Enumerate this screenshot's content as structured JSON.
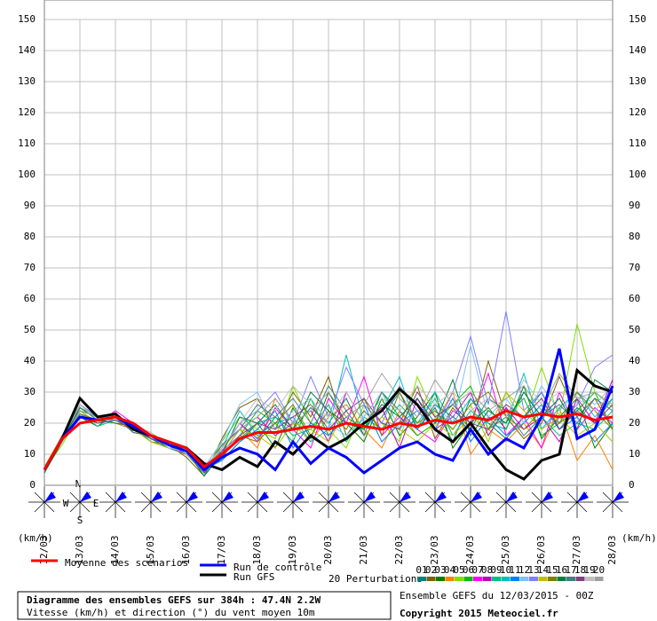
{
  "chart_data": {
    "type": "line",
    "categories": [
      "12/03",
      null,
      "13/03",
      null,
      "14/03",
      null,
      "15/03",
      null,
      "16/03",
      null,
      "17/03",
      null,
      "18/03",
      null,
      "19/03",
      null,
      "20/03",
      null,
      "21/03",
      null,
      "22/03",
      null,
      "23/03",
      null,
      "24/03",
      null,
      "25/03",
      null,
      "26/03",
      null,
      "27/03",
      null,
      "28/03"
    ],
    "ylim": [
      0,
      150
    ],
    "yticks": [
      0,
      10,
      20,
      30,
      40,
      50,
      60,
      70,
      80,
      90,
      100,
      110,
      120,
      130,
      140,
      150
    ],
    "grid": true,
    "y_unit": "(km/h)",
    "compass": [
      "N",
      "W",
      "E",
      "S"
    ],
    "perturbations_label": "20 Perturbations",
    "title": "Diagramme des ensembles GEFS sur 384h : 47.4N 2.2W",
    "subtitle": "Vitesse (km/h) et direction (°) du vent moyen 10m",
    "run_info": "Ensemble GEFS du 12/03/2015 - 00Z",
    "copyright": "Copyright 2015 Meteociel.fr",
    "series": [
      {
        "name": "01",
        "color": "#008080",
        "values": [
          5,
          14,
          24,
          20,
          22,
          18,
          15,
          12,
          10,
          4,
          12,
          20,
          15,
          22,
          18,
          25,
          20,
          28,
          16,
          22,
          30,
          18,
          25,
          14,
          28,
          20,
          15,
          22,
          30,
          18,
          25,
          20,
          28
        ]
      },
      {
        "name": "02",
        "color": "#806000",
        "values": [
          4,
          16,
          26,
          22,
          21,
          19,
          14,
          13,
          9,
          3,
          15,
          25,
          28,
          18,
          30,
          22,
          35,
          16,
          24,
          18,
          20,
          32,
          15,
          25,
          18,
          40,
          22,
          15,
          20,
          35,
          22,
          28,
          18
        ]
      },
      {
        "name": "03",
        "color": "#008000",
        "values": [
          5,
          15,
          22,
          19,
          23,
          17,
          16,
          12,
          11,
          6,
          8,
          14,
          20,
          12,
          25,
          15,
          30,
          20,
          14,
          28,
          16,
          22,
          30,
          12,
          20,
          25,
          18,
          32,
          15,
          22,
          28,
          12,
          20
        ]
      },
      {
        "name": "04",
        "color": "#ff8000",
        "values": [
          6,
          15,
          25,
          21,
          20,
          18,
          15,
          14,
          10,
          5,
          10,
          18,
          12,
          28,
          20,
          14,
          22,
          26,
          18,
          12,
          24,
          16,
          20,
          30,
          10,
          18,
          14,
          20,
          12,
          25,
          8,
          16,
          5
        ]
      },
      {
        "name": "05",
        "color": "#80e000",
        "values": [
          5,
          13,
          23,
          20,
          22,
          19,
          17,
          13,
          12,
          4,
          14,
          22,
          18,
          15,
          32,
          20,
          18,
          12,
          26,
          20,
          14,
          35,
          22,
          18,
          26,
          14,
          30,
          20,
          38,
          22,
          52,
          30,
          25
        ]
      },
      {
        "name": "06",
        "color": "#00c000",
        "values": [
          4,
          15,
          24,
          22,
          21,
          18,
          16,
          12,
          11,
          5,
          9,
          16,
          24,
          20,
          14,
          28,
          16,
          22,
          18,
          30,
          22,
          16,
          20,
          26,
          32,
          18,
          22,
          28,
          16,
          20,
          24,
          30,
          18
        ]
      },
      {
        "name": "07",
        "color": "#ff00ff",
        "values": [
          5,
          16,
          22,
          20,
          24,
          20,
          15,
          13,
          10,
          6,
          11,
          20,
          14,
          25,
          18,
          12,
          28,
          20,
          35,
          16,
          22,
          18,
          14,
          24,
          20,
          36,
          16,
          22,
          12,
          30,
          18,
          25,
          20
        ]
      },
      {
        "name": "08",
        "color": "#c000c0",
        "values": [
          5,
          14,
          26,
          21,
          22,
          17,
          16,
          14,
          11,
          4,
          13,
          18,
          22,
          16,
          20,
          24,
          14,
          30,
          20,
          25,
          12,
          28,
          18,
          22,
          30,
          16,
          25,
          18,
          22,
          14,
          28,
          20,
          34
        ]
      },
      {
        "name": "09",
        "color": "#00c080",
        "values": [
          6,
          15,
          23,
          19,
          21,
          19,
          14,
          12,
          10,
          5,
          10,
          15,
          20,
          22,
          16,
          18,
          26,
          14,
          22,
          18,
          26,
          20,
          28,
          16,
          24,
          20,
          18,
          30,
          22,
          16,
          20,
          18,
          24
        ]
      },
      {
        "name": "10",
        "color": "#00c0c0",
        "values": [
          5,
          15,
          25,
          22,
          23,
          18,
          15,
          13,
          11,
          3,
          12,
          24,
          16,
          20,
          22,
          14,
          18,
          42,
          20,
          24,
          35,
          18,
          30,
          20,
          28,
          22,
          20,
          36,
          18,
          25,
          30,
          22,
          28
        ]
      },
      {
        "name": "11",
        "color": "#0080ff",
        "values": [
          4,
          16,
          24,
          20,
          22,
          20,
          16,
          12,
          12,
          5,
          8,
          14,
          18,
          24,
          12,
          20,
          16,
          22,
          26,
          14,
          20,
          24,
          18,
          28,
          14,
          22,
          16,
          20,
          26,
          18,
          22,
          14,
          20
        ]
      },
      {
        "name": "12",
        "color": "#80c0ff",
        "values": [
          5,
          14,
          22,
          21,
          21,
          18,
          15,
          14,
          10,
          6,
          14,
          26,
          30,
          18,
          24,
          28,
          20,
          16,
          22,
          30,
          18,
          24,
          26,
          20,
          45,
          22,
          28,
          20,
          32,
          24,
          30,
          26,
          32
        ]
      },
      {
        "name": "13",
        "color": "#8080ff",
        "values": [
          5,
          15,
          26,
          22,
          22,
          19,
          16,
          13,
          11,
          4,
          11,
          20,
          24,
          30,
          20,
          35,
          22,
          38,
          26,
          20,
          32,
          24,
          18,
          30,
          48,
          26,
          56,
          24,
          30,
          20,
          26,
          38,
          42
        ]
      },
      {
        "name": "14",
        "color": "#c0c000",
        "values": [
          6,
          16,
          24,
          20,
          23,
          18,
          14,
          12,
          10,
          5,
          12,
          18,
          16,
          12,
          20,
          18,
          14,
          24,
          16,
          22,
          18,
          14,
          20,
          16,
          22,
          18,
          30,
          24,
          18,
          22,
          16,
          20,
          14
        ]
      },
      {
        "name": "15",
        "color": "#808000",
        "values": [
          5,
          15,
          23,
          21,
          22,
          20,
          16,
          14,
          12,
          6,
          9,
          16,
          14,
          20,
          26,
          16,
          24,
          18,
          28,
          16,
          30,
          20,
          24,
          18,
          26,
          30,
          22,
          18,
          24,
          20,
          30,
          24,
          18
        ]
      },
      {
        "name": "16",
        "color": "#008040",
        "values": [
          4,
          14,
          25,
          21,
          20,
          19,
          15,
          13,
          11,
          3,
          10,
          22,
          20,
          26,
          18,
          30,
          24,
          20,
          18,
          26,
          22,
          28,
          20,
          34,
          16,
          24,
          20,
          30,
          22,
          28,
          18,
          34,
          30
        ]
      },
      {
        "name": "17",
        "color": "#408080",
        "values": [
          5,
          16,
          24,
          22,
          22,
          17,
          16,
          12,
          10,
          5,
          13,
          18,
          26,
          22,
          28,
          20,
          32,
          24,
          16,
          30,
          24,
          18,
          26,
          22,
          18,
          28,
          24,
          16,
          22,
          26,
          20,
          28,
          24
        ]
      },
      {
        "name": "18",
        "color": "#804080",
        "values": [
          5,
          15,
          22,
          20,
          21,
          18,
          15,
          13,
          12,
          4,
          11,
          16,
          20,
          18,
          22,
          26,
          18,
          24,
          28,
          20,
          18,
          30,
          22,
          26,
          20,
          18,
          26,
          22,
          28,
          18,
          24,
          20,
          26
        ]
      },
      {
        "name": "19",
        "color": "#c0c0c0",
        "values": [
          6,
          15,
          26,
          21,
          23,
          19,
          17,
          12,
          11,
          6,
          12,
          20,
          28,
          24,
          32,
          26,
          22,
          30,
          20,
          28,
          24,
          32,
          26,
          30,
          24,
          28,
          22,
          34,
          26,
          30,
          28,
          24,
          30
        ]
      },
      {
        "name": "20",
        "color": "#a0a0a0",
        "values": [
          5,
          14,
          24,
          22,
          22,
          18,
          16,
          14,
          10,
          5,
          10,
          18,
          22,
          28,
          20,
          24,
          30,
          22,
          26,
          36,
          28,
          22,
          34,
          26,
          30,
          24,
          28,
          32,
          24,
          36,
          28,
          30,
          26
        ]
      },
      {
        "name": "Run GFS",
        "color": "#000000",
        "values": [
          5,
          15,
          28,
          22,
          23,
          18,
          16,
          14,
          12,
          7,
          5,
          9,
          6,
          14,
          10,
          16,
          12,
          15,
          20,
          24,
          31,
          26,
          18,
          14,
          20,
          12,
          5,
          2,
          8,
          10,
          37,
          32,
          30
        ]
      },
      {
        "name": "Run de contrôle",
        "color": "#0000ff",
        "values": [
          5,
          15,
          22,
          21,
          22,
          19,
          16,
          13,
          11,
          5,
          9,
          12,
          10,
          5,
          14,
          7,
          12,
          9,
          4,
          8,
          12,
          14,
          10,
          8,
          18,
          10,
          15,
          12,
          22,
          44,
          15,
          18,
          32
        ]
      },
      {
        "name": "Moyenne des scénarios",
        "color": "#ff0000",
        "values": [
          5,
          15,
          20,
          21,
          22,
          20,
          16,
          14,
          12,
          6,
          10,
          15,
          17,
          17,
          18,
          19,
          18,
          20,
          19,
          18,
          20,
          19,
          21,
          20,
          22,
          21,
          24,
          22,
          23,
          22,
          23,
          21,
          22
        ]
      }
    ]
  }
}
